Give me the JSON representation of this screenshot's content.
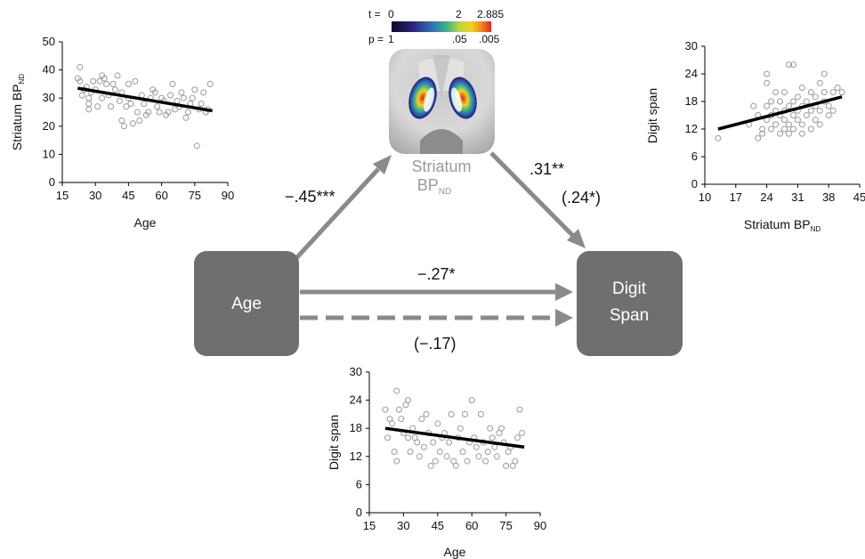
{
  "colorbar": {
    "t_label": "t =",
    "p_label": "p =",
    "t_ticks": [
      "0",
      "2",
      "2.885"
    ],
    "p_ticks": [
      "1",
      ".05",
      ".005"
    ]
  },
  "nodes": {
    "age": "Age",
    "digit_span_line1": "Digit",
    "digit_span_line2": "Span",
    "striatum_line1": "Striatum",
    "striatum_line2_main": "BP",
    "striatum_line2_sub": "ND"
  },
  "paths": {
    "a": "−.45***",
    "b": ".31**",
    "b_partial": "(.24*)",
    "c_total": "−.27*",
    "c_direct": "(−.17)"
  },
  "colors": {
    "node_fill": "#6f6f6f",
    "arrow": "#8a8a8a",
    "scatter_point": "#9a9a9a",
    "fit_line": "#000000"
  },
  "chart_data": [
    {
      "type": "scatter",
      "id": "age-vs-striatum",
      "xlabel": "Age",
      "ylabel": "Striatum BP",
      "ylabel_sub": "ND",
      "xlim": [
        15,
        90
      ],
      "ylim": [
        0,
        50
      ],
      "xticks": [
        15,
        30,
        45,
        60,
        75,
        90
      ],
      "yticks": [
        0,
        10,
        20,
        30,
        40,
        50
      ],
      "fit": [
        [
          22,
          33.5
        ],
        [
          83,
          25.5
        ]
      ],
      "points": [
        [
          22,
          37
        ],
        [
          23,
          41
        ],
        [
          23,
          36
        ],
        [
          24,
          31
        ],
        [
          25,
          33
        ],
        [
          26,
          34
        ],
        [
          27,
          30
        ],
        [
          27,
          28
        ],
        [
          27,
          26
        ],
        [
          28,
          32
        ],
        [
          29,
          36
        ],
        [
          30,
          33
        ],
        [
          31,
          27
        ],
        [
          32,
          36
        ],
        [
          33,
          38
        ],
        [
          33,
          30
        ],
        [
          34,
          37
        ],
        [
          35,
          35
        ],
        [
          36,
          31
        ],
        [
          37,
          27
        ],
        [
          38,
          35
        ],
        [
          39,
          33
        ],
        [
          40,
          38
        ],
        [
          41,
          29
        ],
        [
          42,
          22
        ],
        [
          42,
          32
        ],
        [
          43,
          20
        ],
        [
          44,
          27
        ],
        [
          45,
          35
        ],
        [
          45,
          30
        ],
        [
          46,
          28
        ],
        [
          47,
          21
        ],
        [
          48,
          36
        ],
        [
          49,
          25
        ],
        [
          50,
          22
        ],
        [
          51,
          31
        ],
        [
          52,
          28
        ],
        [
          53,
          24
        ],
        [
          54,
          25
        ],
        [
          55,
          30
        ],
        [
          56,
          33
        ],
        [
          57,
          32
        ],
        [
          58,
          27
        ],
        [
          59,
          25
        ],
        [
          60,
          30
        ],
        [
          61,
          29
        ],
        [
          62,
          24
        ],
        [
          63,
          25
        ],
        [
          64,
          31
        ],
        [
          65,
          35
        ],
        [
          66,
          26
        ],
        [
          67,
          29
        ],
        [
          68,
          27
        ],
        [
          69,
          32
        ],
        [
          70,
          30
        ],
        [
          71,
          23
        ],
        [
          72,
          25
        ],
        [
          73,
          28
        ],
        [
          74,
          30
        ],
        [
          75,
          33
        ],
        [
          76,
          13
        ],
        [
          77,
          26
        ],
        [
          78,
          28
        ],
        [
          79,
          32
        ],
        [
          80,
          25
        ],
        [
          81,
          26
        ],
        [
          82,
          35
        ]
      ]
    },
    {
      "type": "scatter",
      "id": "striatum-vs-digitspan",
      "xlabel": "Striatum BP",
      "xlabel_sub": "ND",
      "ylabel": "Digit span",
      "xlim": [
        10,
        45
      ],
      "ylim": [
        0,
        30
      ],
      "xticks": [
        10,
        17,
        24,
        31,
        38,
        45
      ],
      "yticks": [
        0,
        6,
        12,
        18,
        24,
        30
      ],
      "fit": [
        [
          13,
          12
        ],
        [
          41,
          19
        ]
      ],
      "points": [
        [
          13,
          10
        ],
        [
          20,
          13
        ],
        [
          21,
          17
        ],
        [
          22,
          10
        ],
        [
          22,
          15
        ],
        [
          23,
          12
        ],
        [
          23,
          11
        ],
        [
          24,
          24
        ],
        [
          24,
          22
        ],
        [
          24,
          17
        ],
        [
          24,
          14
        ],
        [
          25,
          18
        ],
        [
          25,
          15
        ],
        [
          25,
          12
        ],
        [
          26,
          16
        ],
        [
          26,
          20
        ],
        [
          26,
          13
        ],
        [
          27,
          15
        ],
        [
          27,
          11
        ],
        [
          27,
          18
        ],
        [
          28,
          14
        ],
        [
          28,
          16
        ],
        [
          28,
          12
        ],
        [
          28,
          20
        ],
        [
          29,
          17
        ],
        [
          29,
          11
        ],
        [
          29,
          13
        ],
        [
          29,
          26
        ],
        [
          30,
          15
        ],
        [
          30,
          18
        ],
        [
          30,
          12
        ],
        [
          30,
          26
        ],
        [
          31,
          16
        ],
        [
          31,
          14
        ],
        [
          31,
          19
        ],
        [
          32,
          13
        ],
        [
          32,
          17
        ],
        [
          32,
          21
        ],
        [
          32,
          11
        ],
        [
          33,
          18
        ],
        [
          33,
          15
        ],
        [
          34,
          16
        ],
        [
          34,
          12
        ],
        [
          34,
          20
        ],
        [
          35,
          14
        ],
        [
          35,
          19
        ],
        [
          35,
          17
        ],
        [
          36,
          13
        ],
        [
          36,
          22
        ],
        [
          36,
          16
        ],
        [
          37,
          18
        ],
        [
          37,
          24
        ],
        [
          37,
          20
        ],
        [
          38,
          15
        ],
        [
          38,
          17
        ],
        [
          39,
          20
        ],
        [
          39,
          16
        ],
        [
          40,
          21
        ],
        [
          41,
          20
        ]
      ]
    },
    {
      "type": "scatter",
      "id": "age-vs-digitspan",
      "xlabel": "Age",
      "ylabel": "Digit span",
      "xlim": [
        15,
        90
      ],
      "ylim": [
        0,
        30
      ],
      "xticks": [
        15,
        30,
        45,
        60,
        75,
        90
      ],
      "yticks": [
        0,
        6,
        12,
        18,
        24,
        30
      ],
      "fit": [
        [
          22,
          18
        ],
        [
          83,
          14
        ]
      ],
      "points": [
        [
          22,
          22
        ],
        [
          23,
          16
        ],
        [
          24,
          20
        ],
        [
          25,
          19
        ],
        [
          26,
          13
        ],
        [
          27,
          26
        ],
        [
          27,
          11
        ],
        [
          28,
          22
        ],
        [
          29,
          20
        ],
        [
          30,
          17
        ],
        [
          31,
          23
        ],
        [
          32,
          16
        ],
        [
          32,
          24
        ],
        [
          33,
          13
        ],
        [
          34,
          18
        ],
        [
          35,
          16
        ],
        [
          36,
          15
        ],
        [
          37,
          12
        ],
        [
          38,
          20
        ],
        [
          39,
          14
        ],
        [
          40,
          21
        ],
        [
          41,
          17
        ],
        [
          42,
          10
        ],
        [
          43,
          15
        ],
        [
          44,
          11
        ],
        [
          45,
          19
        ],
        [
          46,
          13
        ],
        [
          47,
          16
        ],
        [
          48,
          17
        ],
        [
          49,
          12
        ],
        [
          50,
          15
        ],
        [
          51,
          21
        ],
        [
          52,
          11
        ],
        [
          53,
          10
        ],
        [
          54,
          16
        ],
        [
          55,
          18
        ],
        [
          56,
          13
        ],
        [
          57,
          21
        ],
        [
          58,
          11
        ],
        [
          59,
          15
        ],
        [
          60,
          24
        ],
        [
          61,
          16
        ],
        [
          62,
          14
        ],
        [
          63,
          12
        ],
        [
          64,
          21
        ],
        [
          65,
          15
        ],
        [
          66,
          11
        ],
        [
          67,
          13
        ],
        [
          68,
          18
        ],
        [
          69,
          16
        ],
        [
          70,
          14
        ],
        [
          71,
          12
        ],
        [
          72,
          17
        ],
        [
          73,
          18
        ],
        [
          74,
          15
        ],
        [
          75,
          10
        ],
        [
          76,
          13
        ],
        [
          77,
          14
        ],
        [
          78,
          10
        ],
        [
          79,
          11
        ],
        [
          80,
          16
        ],
        [
          81,
          22
        ],
        [
          82,
          17
        ]
      ]
    }
  ]
}
